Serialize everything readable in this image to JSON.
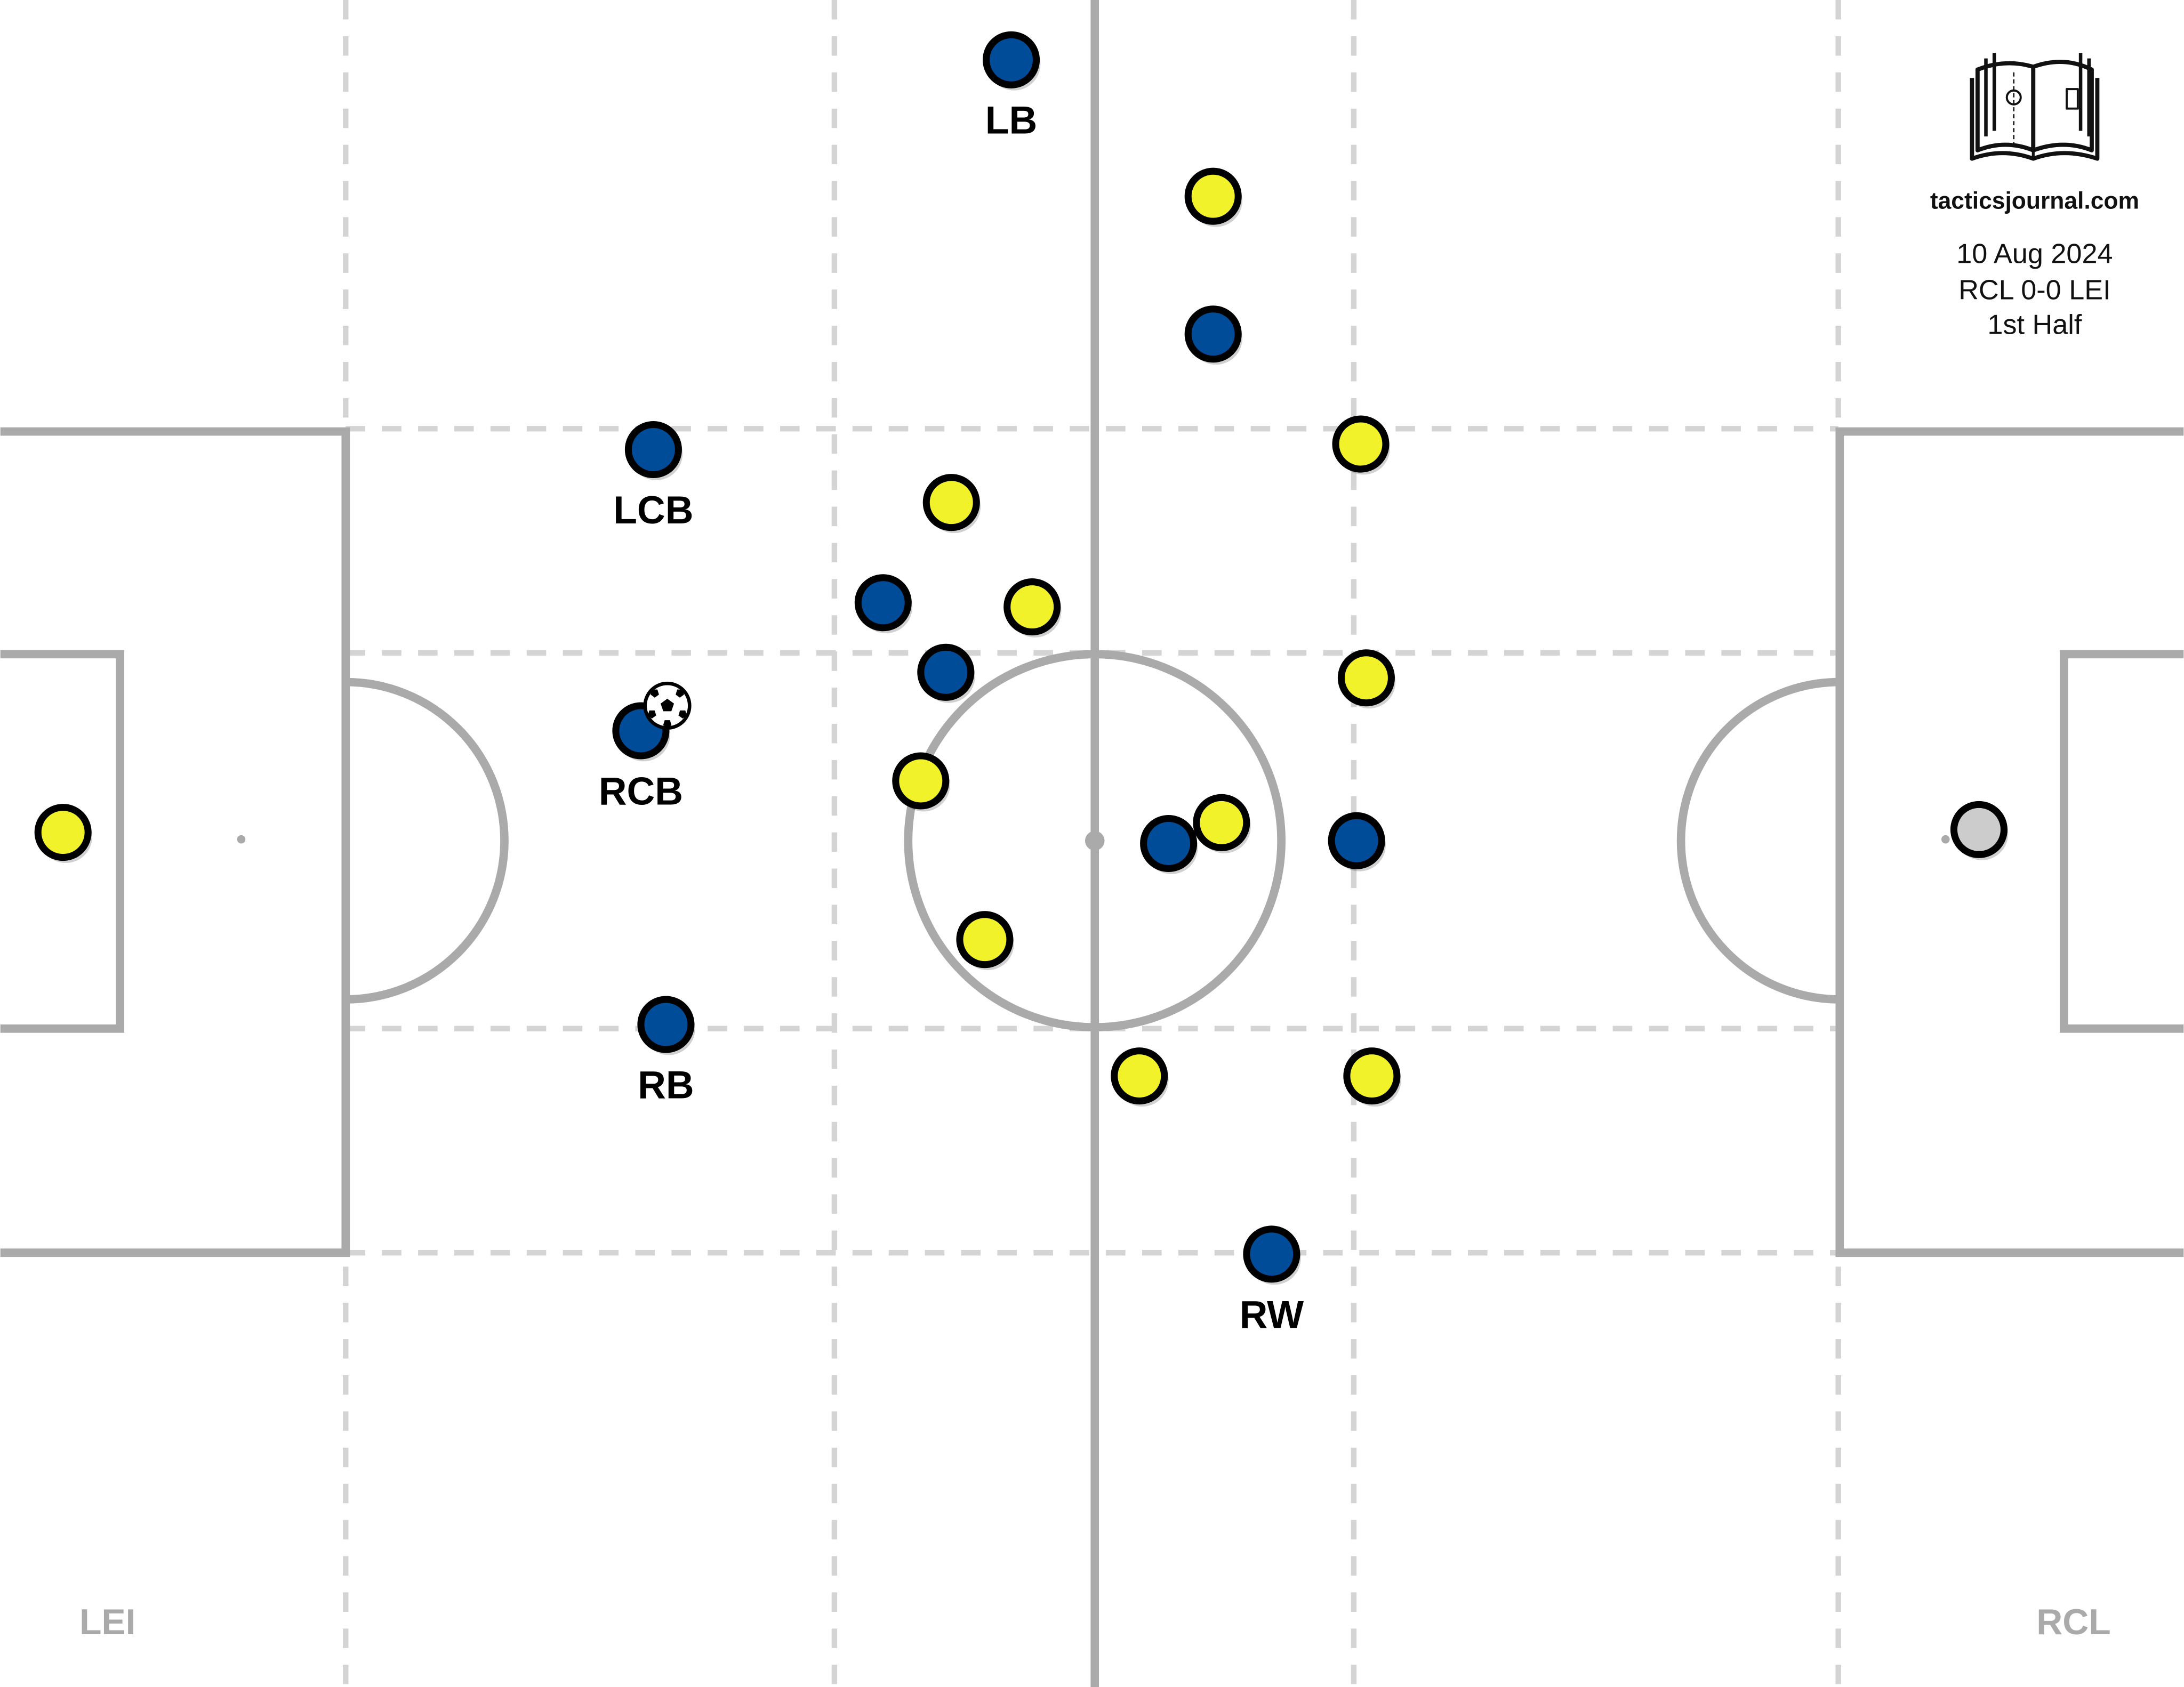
{
  "branding": {
    "site": "tacticsjournal.com",
    "logo_icon": "open-book-pitch-icon"
  },
  "match": {
    "date": "10 Aug 2024",
    "score": "RCL 0-0 LEI",
    "period": "1st Half"
  },
  "sides": {
    "left": "LEI",
    "right": "RCL"
  },
  "colors": {
    "pitch_line": "#aaaaaa",
    "grid_line": "#d4d4d4",
    "home": "#004c99",
    "away": "#f2f22a",
    "outline": "#000000",
    "keeper_left": "#cccccc",
    "keeper_right": "#777777",
    "side_label": "#aaaaaa"
  },
  "players": [
    {
      "team": "home",
      "label": "LB"
    },
    {
      "team": "home",
      "label": "LCB"
    },
    {
      "team": "home",
      "label": "RCB",
      "has_ball": true
    },
    {
      "team": "home",
      "label": "RB"
    },
    {
      "team": "home",
      "label": "RW"
    },
    {
      "team": "home",
      "label": ""
    },
    {
      "team": "home",
      "label": ""
    },
    {
      "team": "home",
      "label": ""
    },
    {
      "team": "home",
      "label": ""
    },
    {
      "team": "home",
      "label": ""
    },
    {
      "team": "away",
      "label": ""
    },
    {
      "team": "away",
      "label": ""
    },
    {
      "team": "away",
      "label": ""
    },
    {
      "team": "away",
      "label": ""
    },
    {
      "team": "away",
      "label": ""
    },
    {
      "team": "away",
      "label": ""
    },
    {
      "team": "away",
      "label": ""
    },
    {
      "team": "away",
      "label": ""
    },
    {
      "team": "away",
      "label": ""
    },
    {
      "team": "away",
      "label": ""
    },
    {
      "team": "away",
      "label": ""
    },
    {
      "team": "keeper_left",
      "label": ""
    },
    {
      "team": "keeper_right",
      "label": ""
    }
  ]
}
